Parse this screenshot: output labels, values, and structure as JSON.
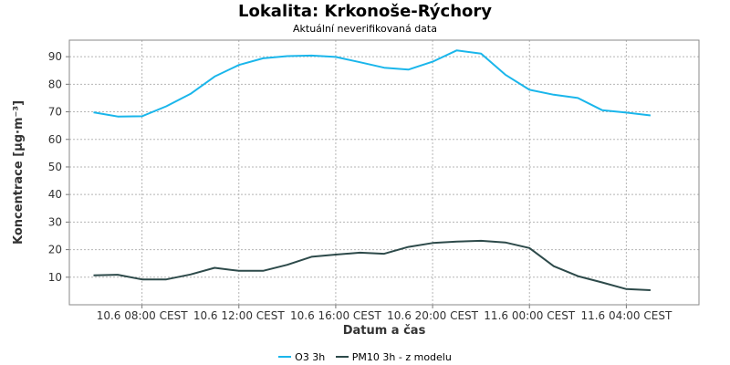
{
  "chart_data": {
    "type": "line",
    "title": "Lokalita: Krkonoše-Rýchory",
    "subtitle": "Aktuální neverifikovaná data",
    "xlabel": "Datum a čas",
    "ylabel": "Koncentrace [µg·m⁻³]",
    "ylim": [
      0,
      96
    ],
    "yticks": [
      10,
      20,
      30,
      40,
      50,
      60,
      70,
      80,
      90
    ],
    "xlim": [
      "10.6 05:00",
      "11.6 07:00"
    ],
    "xticks": [
      "10.6 08:00 CEST",
      "10.6 12:00 CEST",
      "10.6 16:00 CEST",
      "10.6 20:00 CEST",
      "11.6 00:00 CEST",
      "11.6 04:00 CEST"
    ],
    "x": [
      "10.6 06:00",
      "10.6 07:00",
      "10.6 08:00",
      "10.6 09:00",
      "10.6 10:00",
      "10.6 11:00",
      "10.6 12:00",
      "10.6 13:00",
      "10.6 14:00",
      "10.6 15:00",
      "10.6 16:00",
      "10.6 17:00",
      "10.6 18:00",
      "10.6 19:00",
      "10.6 20:00",
      "10.6 21:00",
      "10.6 22:00",
      "10.6 23:00",
      "11.6 00:00",
      "11.6 01:00",
      "11.6 02:00",
      "11.6 03:00",
      "11.6 04:00",
      "11.6 05:00"
    ],
    "series": [
      {
        "name": "O3 3h",
        "color": "#1ab6eb",
        "values": [
          69.8,
          68.3,
          68.4,
          72.0,
          76.5,
          82.8,
          87.0,
          89.4,
          90.2,
          90.4,
          89.9,
          88.0,
          86.0,
          85.3,
          88.2,
          92.3,
          91.1,
          83.5,
          78.0,
          76.2,
          75.0,
          70.6,
          69.7,
          68.7
        ]
      },
      {
        "name": "PM10 3h - z modelu",
        "color": "#2d4a4a",
        "values": [
          10.7,
          10.9,
          9.2,
          9.2,
          11.0,
          13.4,
          12.3,
          12.3,
          14.5,
          17.4,
          18.2,
          18.9,
          18.5,
          21.0,
          22.4,
          22.9,
          23.2,
          22.6,
          20.6,
          14.0,
          10.4,
          8.1,
          5.7,
          5.3
        ]
      }
    ],
    "grid": true,
    "legend": "bottom-center"
  }
}
